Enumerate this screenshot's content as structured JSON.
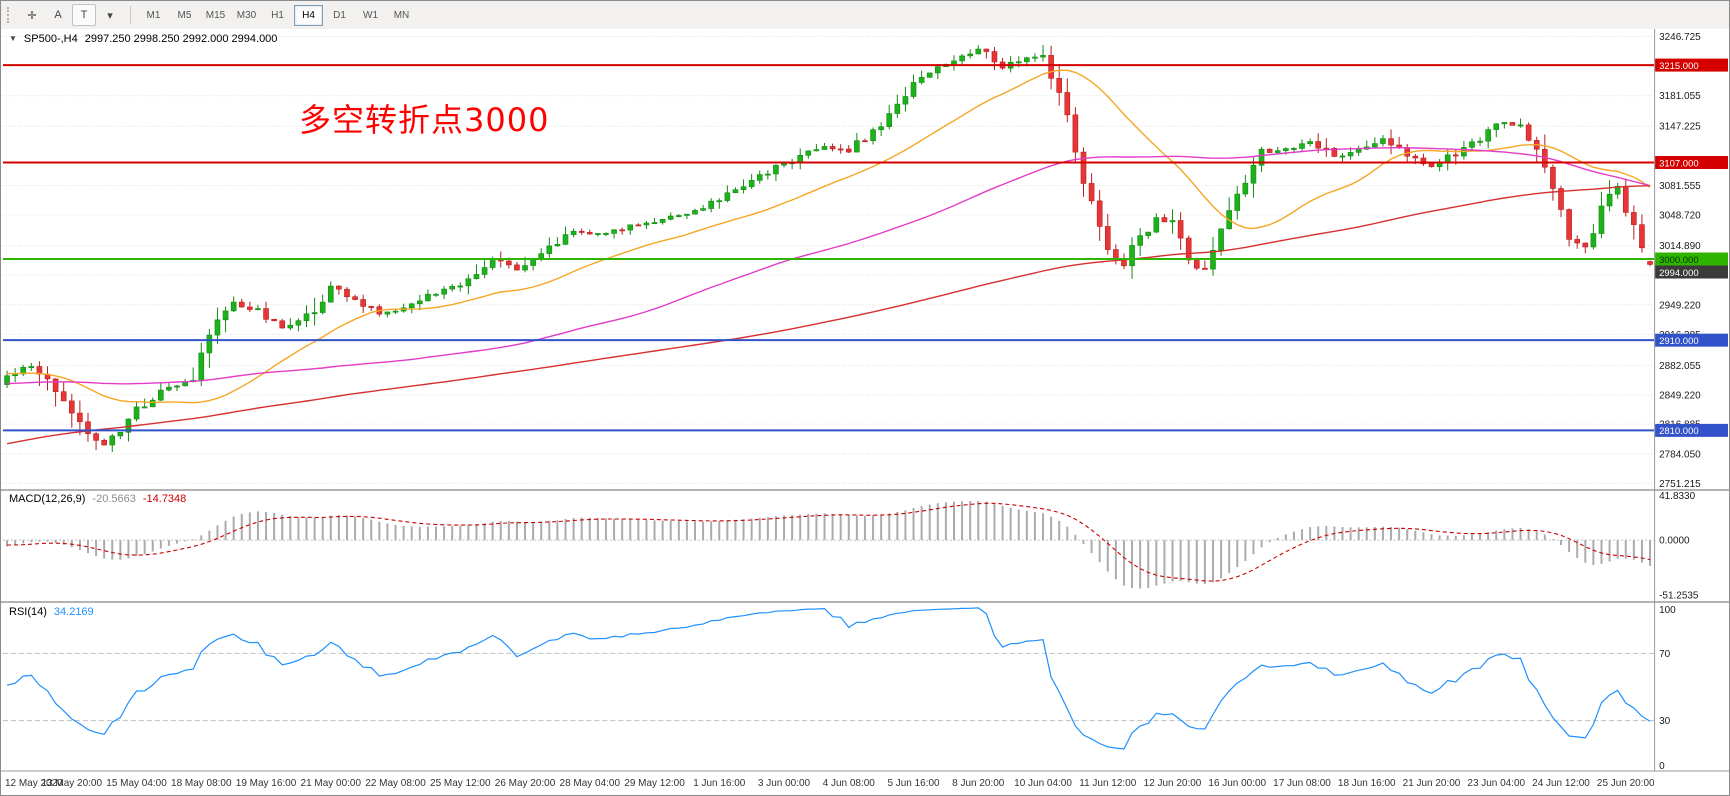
{
  "toolbar": {
    "tools": [
      {
        "name": "crosshair-tool",
        "glyph": "✛"
      },
      {
        "name": "arrow-label-tool",
        "glyph": "A"
      },
      {
        "name": "text-tool",
        "glyph": "T"
      },
      {
        "name": "cursor-select-tool",
        "glyph": "▾"
      }
    ],
    "timeframes": [
      "M1",
      "M5",
      "M15",
      "M30",
      "H1",
      "H4",
      "D1",
      "W1",
      "MN"
    ],
    "active_timeframe": "H4"
  },
  "legend": {
    "symbol": "SP500-,H4",
    "values": "2997.250 2998.250 2992.000 2994.000"
  },
  "annotation": {
    "text": "多空转折点3000",
    "color": "#fe0000"
  },
  "price_scale": {
    "labels": [
      "3246.725",
      "3181.055",
      "3147.225",
      "3081.555",
      "3048.720",
      "3014.890",
      "2982.055",
      "2949.220",
      "2916.385",
      "2882.055",
      "2849.220",
      "2816.885",
      "2784.050",
      "2751.215"
    ]
  },
  "lines": [
    {
      "price": 3215.0,
      "label": "3215.000",
      "color": "#d40000",
      "text_color": "#ffffff"
    },
    {
      "price": 3107.0,
      "label": "3107.000",
      "color": "#d40000",
      "text_color": "#ffffff"
    },
    {
      "price": 3000.0,
      "label": "3000.000",
      "color": "#2fb500",
      "text_color": "#003300"
    },
    {
      "price": 2910.0,
      "label": "2910.000",
      "color": "#3152c8",
      "text_color": "#ffffff"
    },
    {
      "price": 2810.0,
      "label": "2810.000",
      "color": "#3152c8",
      "text_color": "#ffffff"
    }
  ],
  "last_price": {
    "price": 2994.0,
    "label": "2994.000",
    "tag_bg": "#3a3a3a"
  },
  "indicators": {
    "macd": {
      "title": "MACD(12,26,9)",
      "value_main": "-20.5663",
      "value_signal": "-14.7348",
      "axis": [
        "41.8330",
        "0.0000",
        "-51.2535"
      ],
      "axis_values": [
        41.833,
        0,
        -51.2535
      ]
    },
    "rsi": {
      "title": "RSI(14)",
      "value": "34.2169",
      "axis": [
        "100",
        "70",
        "30",
        "0"
      ],
      "axis_values": [
        100,
        70,
        30,
        0
      ],
      "levels": [
        70,
        30
      ]
    }
  },
  "time_axis": {
    "bars_per_label": 8,
    "labels": [
      "12 May 2020",
      "13 May 20:00",
      "15 May 04:00",
      "18 May 08:00",
      "19 May 16:00",
      "21 May 00:00",
      "22 May 08:00",
      "25 May 12:00",
      "26 May 20:00",
      "28 May 04:00",
      "29 May 12:00",
      "1 Jun 16:00",
      "3 Jun 00:00",
      "4 Jun 08:00",
      "5 Jun 16:00",
      "8 Jun 20:00",
      "10 Jun 04:00",
      "11 Jun 12:00",
      "12 Jun 20:00",
      "16 Jun 00:00",
      "17 Jun 08:00",
      "18 Jun 16:00",
      "21 Jun 20:00",
      "23 Jun 04:00",
      "24 Jun 12:00",
      "25 Jun 20:00"
    ]
  },
  "chart_data": {
    "type": "candlestick",
    "symbol": "SP500-",
    "timeframe": "H4",
    "bars": 204,
    "price_range_top": 3255,
    "price_range_bottom": 2745,
    "last_bar": {
      "open": 2997.25,
      "high": 2998.25,
      "low": 2992.0,
      "close": 2994.0
    },
    "anchors": [
      [
        0,
        2868
      ],
      [
        3,
        2882
      ],
      [
        6,
        2856
      ],
      [
        9,
        2815
      ],
      [
        12,
        2793
      ],
      [
        14,
        2806
      ],
      [
        16,
        2832
      ],
      [
        20,
        2858
      ],
      [
        23,
        2864
      ],
      [
        25,
        2922
      ],
      [
        28,
        2950
      ],
      [
        31,
        2942
      ],
      [
        34,
        2923
      ],
      [
        37,
        2936
      ],
      [
        40,
        2968
      ],
      [
        43,
        2952
      ],
      [
        46,
        2940
      ],
      [
        49,
        2946
      ],
      [
        52,
        2958
      ],
      [
        56,
        2972
      ],
      [
        60,
        3002
      ],
      [
        63,
        2988
      ],
      [
        66,
        3008
      ],
      [
        70,
        3030
      ],
      [
        74,
        3028
      ],
      [
        78,
        3038
      ],
      [
        82,
        3046
      ],
      [
        86,
        3056
      ],
      [
        90,
        3078
      ],
      [
        94,
        3096
      ],
      [
        98,
        3114
      ],
      [
        101,
        3126
      ],
      [
        104,
        3120
      ],
      [
        108,
        3152
      ],
      [
        112,
        3192
      ],
      [
        116,
        3216
      ],
      [
        120,
        3234
      ],
      [
        123,
        3212
      ],
      [
        126,
        3224
      ],
      [
        128,
        3228
      ],
      [
        130,
        3186
      ],
      [
        132,
        3120
      ],
      [
        134,
        3058
      ],
      [
        136,
        3008
      ],
      [
        138,
        2994
      ],
      [
        140,
        3024
      ],
      [
        142,
        3048
      ],
      [
        144,
        3040
      ],
      [
        146,
        2998
      ],
      [
        148,
        2986
      ],
      [
        150,
        3034
      ],
      [
        152,
        3074
      ],
      [
        155,
        3118
      ],
      [
        158,
        3122
      ],
      [
        161,
        3132
      ],
      [
        164,
        3112
      ],
      [
        167,
        3122
      ],
      [
        170,
        3134
      ],
      [
        173,
        3116
      ],
      [
        176,
        3102
      ],
      [
        179,
        3118
      ],
      [
        182,
        3134
      ],
      [
        185,
        3152
      ],
      [
        187,
        3148
      ],
      [
        189,
        3120
      ],
      [
        191,
        3076
      ],
      [
        193,
        3024
      ],
      [
        195,
        3014
      ],
      [
        197,
        3056
      ],
      [
        199,
        3078
      ],
      [
        201,
        3036
      ],
      [
        202,
        3006
      ],
      [
        203,
        2994
      ]
    ],
    "pre_anchors": [
      [
        -200,
        2480
      ],
      [
        -170,
        2565
      ],
      [
        -140,
        2680
      ],
      [
        -110,
        2765
      ],
      [
        -90,
        2805
      ],
      [
        -70,
        2852
      ],
      [
        -55,
        2818
      ],
      [
        -42,
        2865
      ],
      [
        -30,
        2898
      ],
      [
        -20,
        2872
      ],
      [
        -12,
        2908
      ],
      [
        -6,
        2838
      ],
      [
        -1,
        2862
      ]
    ],
    "moving_averages": [
      {
        "name": "fast",
        "period": 22,
        "color": "#f5a623"
      },
      {
        "name": "medium",
        "period": 72,
        "color": "#e43cc8"
      },
      {
        "name": "slow",
        "period": 160,
        "color": "#d63031"
      }
    ],
    "macd_params": {
      "fast": 12,
      "slow": 26,
      "signal": 9
    },
    "rsi_period": 14,
    "colors": {
      "up": "#1cb21c",
      "up_stroke": "#128a12",
      "down": "#e83535",
      "down_stroke": "#b61e1e",
      "grid": "#dedede",
      "macd_hist": "#ababab",
      "macd_signal": "#cc0000",
      "rsi": "#1e90ff"
    }
  }
}
